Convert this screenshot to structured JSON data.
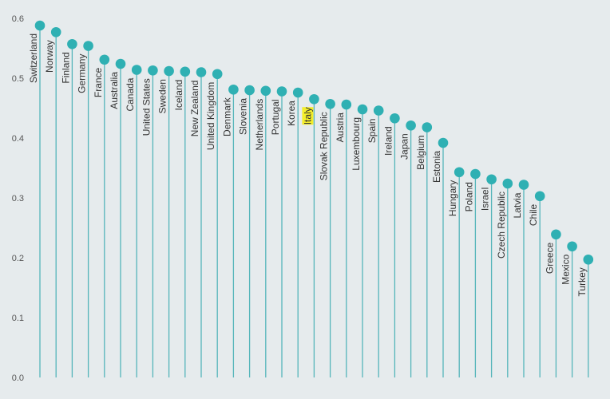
{
  "chart_data": {
    "type": "lollipop",
    "title": "",
    "xlabel": "",
    "ylabel": "",
    "ylim": [
      0,
      0.6
    ],
    "yticks": [
      "0.0",
      "0.1",
      "0.2",
      "0.3",
      "0.4",
      "0.5",
      "0.6"
    ],
    "grid": false,
    "legend": "none",
    "colors": {
      "background": "#e6ebed",
      "marker": "#2fb0b3",
      "stem": "#55b5ba",
      "highlight": "#f4ee2a"
    },
    "highlight_category": "Italy",
    "categories": [
      "Switzerland",
      "Norway",
      "Finland",
      "Germany",
      "France",
      "Australia",
      "Canada",
      "United States",
      "Sweden",
      "Iceland",
      "New Zealand",
      "United Kingdom",
      "Denmark",
      "Slovenia",
      "Netherlands",
      "Portugal",
      "Korea",
      "Italy",
      "Slovak Republic",
      "Austria",
      "Luxembourg",
      "Spain",
      "Ireland",
      "Japan",
      "Belgium",
      "Estonia",
      "Hungary",
      "Poland",
      "Israel",
      "Czech Republic",
      "Latvia",
      "Chile",
      "Greece",
      "Mexico",
      "Turkey"
    ],
    "values": [
      0.588,
      0.577,
      0.557,
      0.554,
      0.531,
      0.524,
      0.514,
      0.513,
      0.512,
      0.511,
      0.51,
      0.507,
      0.481,
      0.48,
      0.479,
      0.478,
      0.476,
      0.465,
      0.457,
      0.456,
      0.448,
      0.446,
      0.433,
      0.421,
      0.418,
      0.392,
      0.343,
      0.34,
      0.331,
      0.324,
      0.322,
      0.303,
      0.239,
      0.219,
      0.197
    ]
  }
}
